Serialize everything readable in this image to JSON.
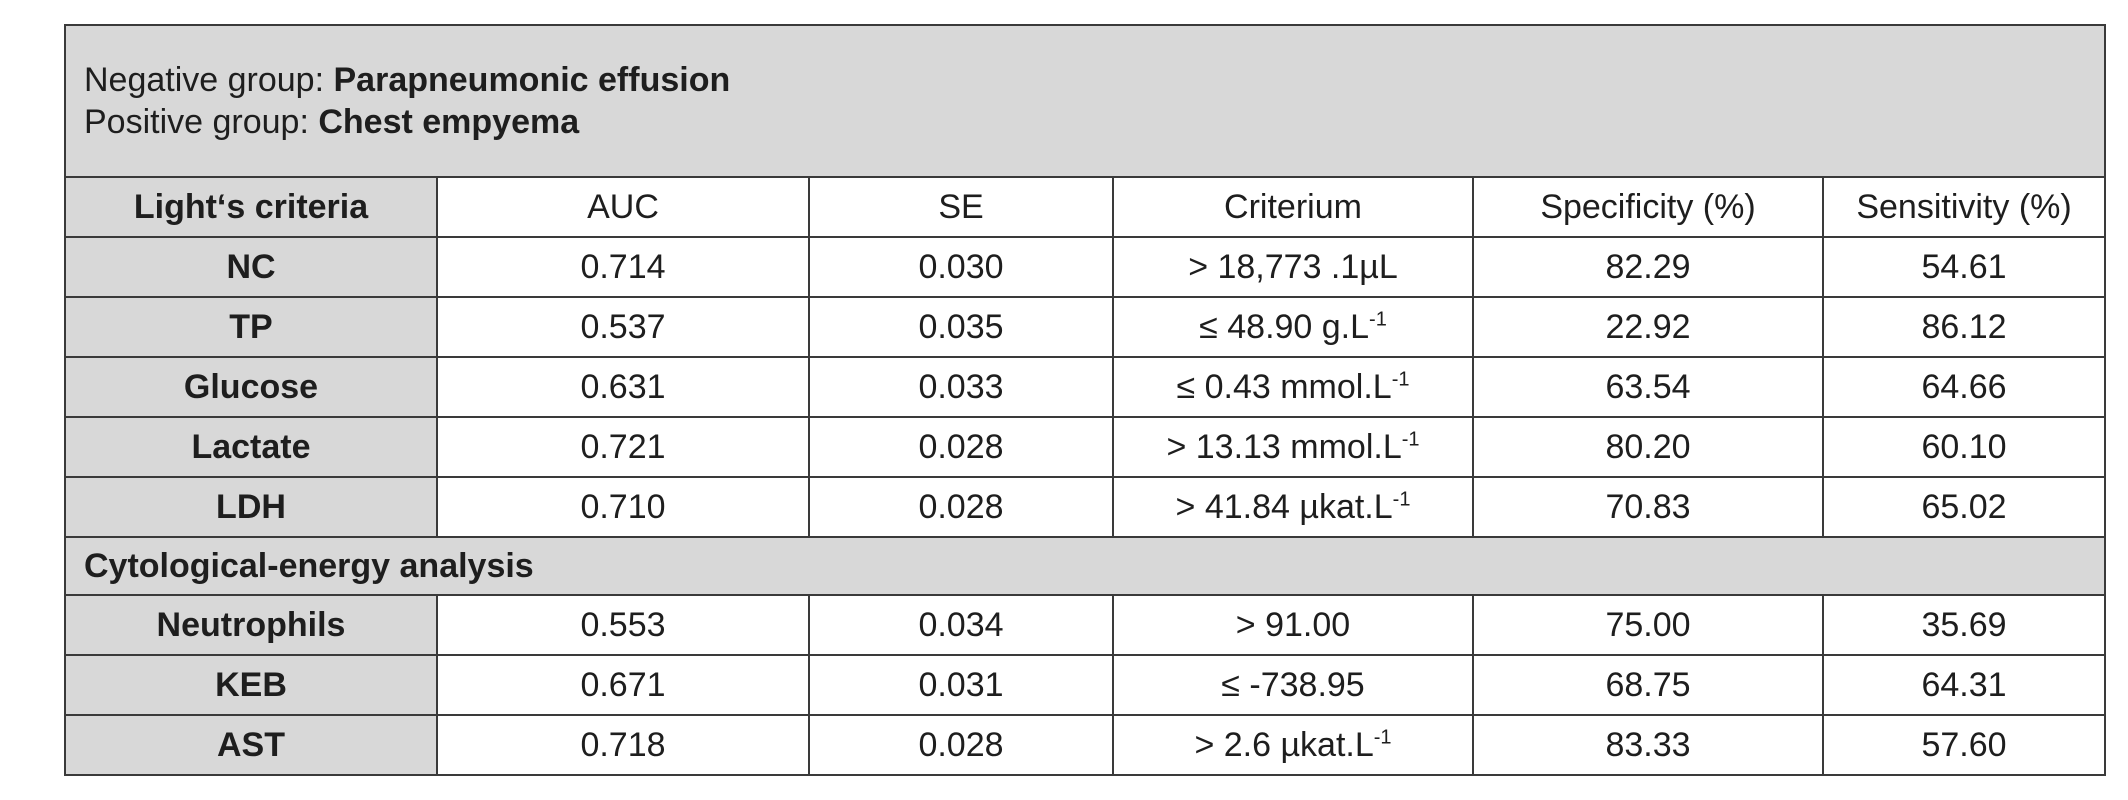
{
  "header": {
    "negative_label": "Negative group: ",
    "negative_value": "Parapneumonic effusion",
    "positive_label": "Positive group: ",
    "positive_value": "Chest empyema"
  },
  "columns": [
    "Light‘s criteria",
    "AUC",
    "SE",
    "Criterium",
    "Specificity (%)",
    "Sensitivity (%)"
  ],
  "section1_rows": [
    {
      "name": "NC",
      "auc": "0.714",
      "se": "0.030",
      "crit": "> 18,773 .1µL",
      "crit_sup": "",
      "spec": "82.29",
      "sens": "54.61"
    },
    {
      "name": "TP",
      "auc": "0.537",
      "se": "0.035",
      "crit": "≤ 48.90 g.L",
      "crit_sup": "-1",
      "spec": "22.92",
      "sens": "86.12"
    },
    {
      "name": "Glucose",
      "auc": "0.631",
      "se": "0.033",
      "crit": "≤ 0.43 mmol.L",
      "crit_sup": "-1",
      "spec": "63.54",
      "sens": "64.66"
    },
    {
      "name": "Lactate",
      "auc": "0.721",
      "se": "0.028",
      "crit": "> 13.13 mmol.L",
      "crit_sup": "-1",
      "spec": "80.20",
      "sens": "60.10"
    },
    {
      "name": "LDH",
      "auc": "0.710",
      "se": "0.028",
      "crit": "> 41.84 µkat.L",
      "crit_sup": "-1",
      "spec": "70.83",
      "sens": "65.02"
    }
  ],
  "section2_title": "Cytological-energy analysis",
  "section2_rows": [
    {
      "name": "Neutrophils",
      "auc": "0.553",
      "se": "0.034",
      "crit": "> 91.00",
      "crit_sup": "",
      "spec": "75.00",
      "sens": "35.69"
    },
    {
      "name": "KEB",
      "auc": "0.671",
      "se": "0.031",
      "crit": "≤ -738.95",
      "crit_sup": "",
      "spec": "68.75",
      "sens": "64.31"
    },
    {
      "name": "AST",
      "auc": "0.718",
      "se": "0.028",
      "crit": "> 2.6 µkat.L",
      "crit_sup": "-1",
      "spec": "83.33",
      "sens": "57.60"
    }
  ]
}
